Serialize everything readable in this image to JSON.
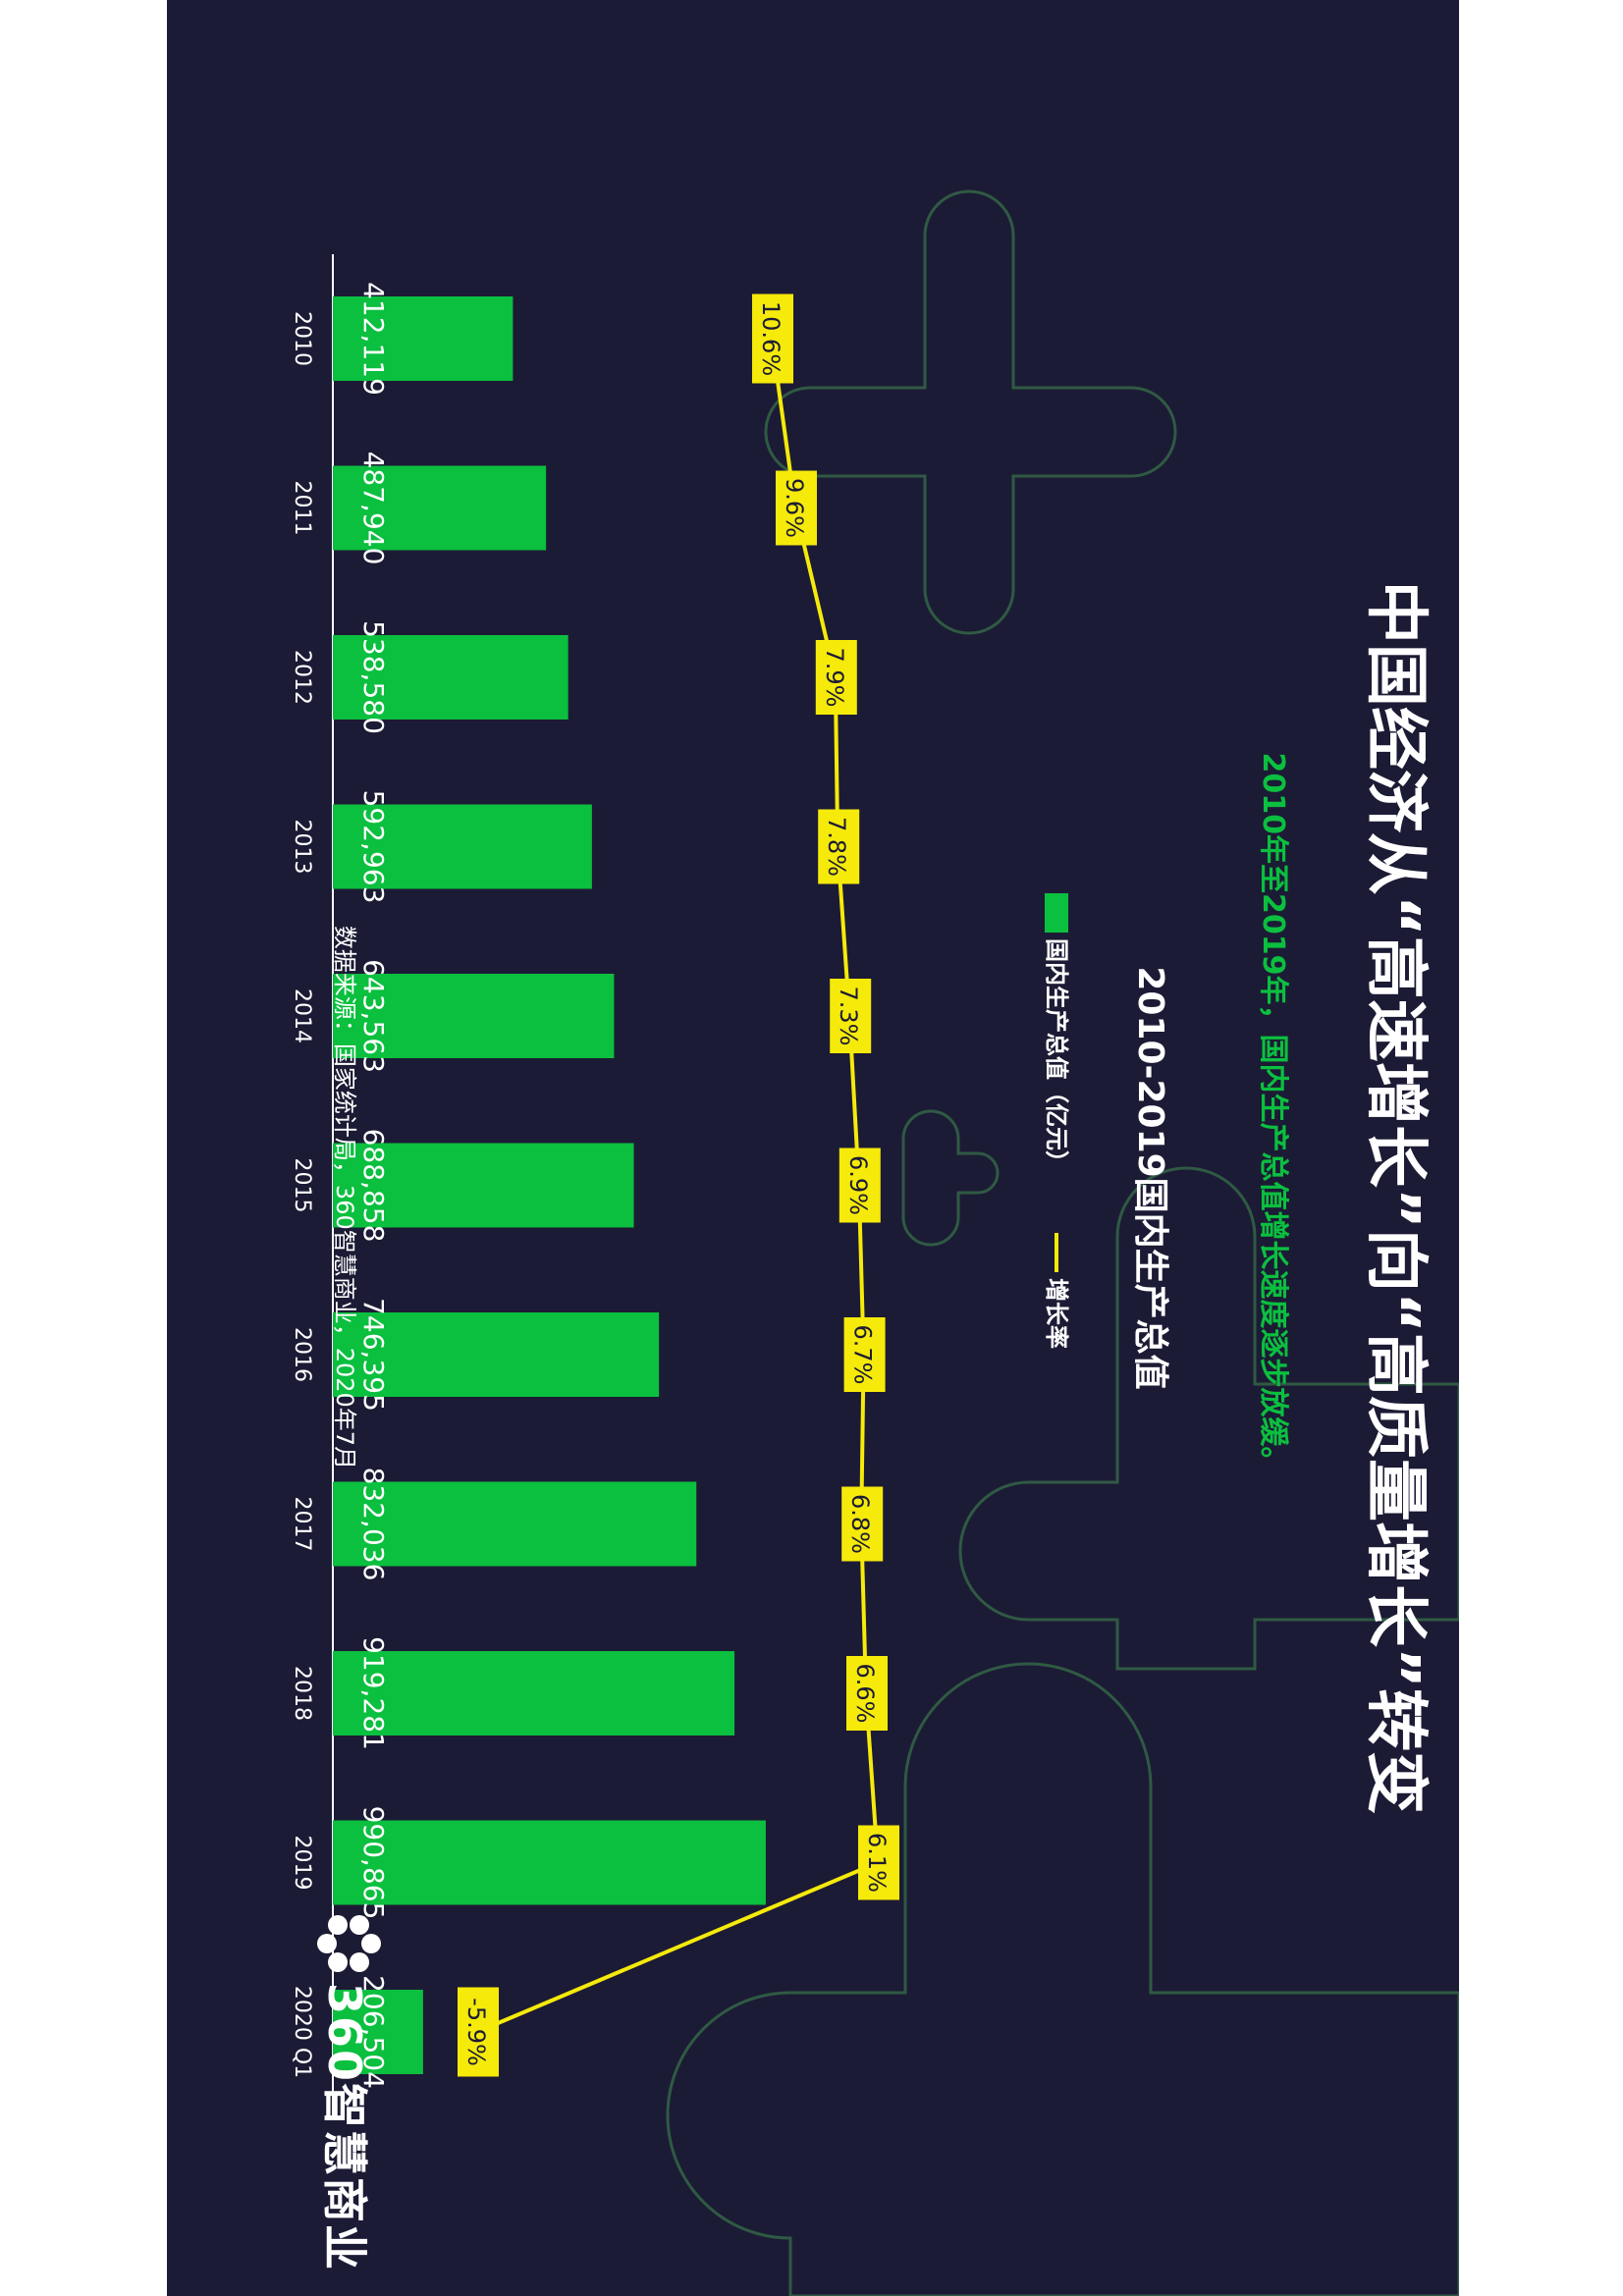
{
  "title": "中国经济从“高速增长”向“高质量增长”转变",
  "subtitle": "2010年至2019年，国内生产总值增长速度逐步放缓。",
  "source": "数据来源：国家统计局，360智慧商业，2020年7月",
  "logo_text": "360智慧商业",
  "colors": {
    "background": "#1c1b35",
    "bar": "#0bbf3f",
    "line": "#f5ea0a",
    "deco": "#2f5a43"
  },
  "icons": {
    "logo": "asterisk-flower-logo-icon"
  },
  "chart_data": {
    "type": "bar",
    "title": "2010-2019国内生产总值",
    "categories": [
      "2010",
      "2011",
      "2012",
      "2013",
      "2014",
      "2015",
      "2016",
      "2017",
      "2018",
      "2019",
      "2020 Q1"
    ],
    "series": [
      {
        "name": "国内生产总值（亿元）",
        "type": "bar",
        "values": [
          412119,
          487940,
          538580,
          592963,
          643563,
          688858,
          746395,
          832036,
          919281,
          990865,
          206504
        ],
        "labels": [
          "412,119",
          "487,940",
          "538,580",
          "592,963",
          "643,563",
          "688,858",
          "746,395",
          "832,036",
          "919,281",
          "990,865",
          "206,504"
        ]
      },
      {
        "name": "增长率",
        "type": "line",
        "values": [
          10.6,
          9.6,
          7.9,
          7.8,
          7.3,
          6.9,
          6.7,
          6.8,
          6.6,
          6.1,
          -5.9
        ],
        "labels": [
          "10.6%",
          "9.6%",
          "7.9%",
          "7.8%",
          "7.3%",
          "6.9%",
          "6.7%",
          "6.8%",
          "6.6%",
          "6.1%",
          "-5.9%"
        ]
      }
    ],
    "legend_position": "top",
    "grid": false
  }
}
